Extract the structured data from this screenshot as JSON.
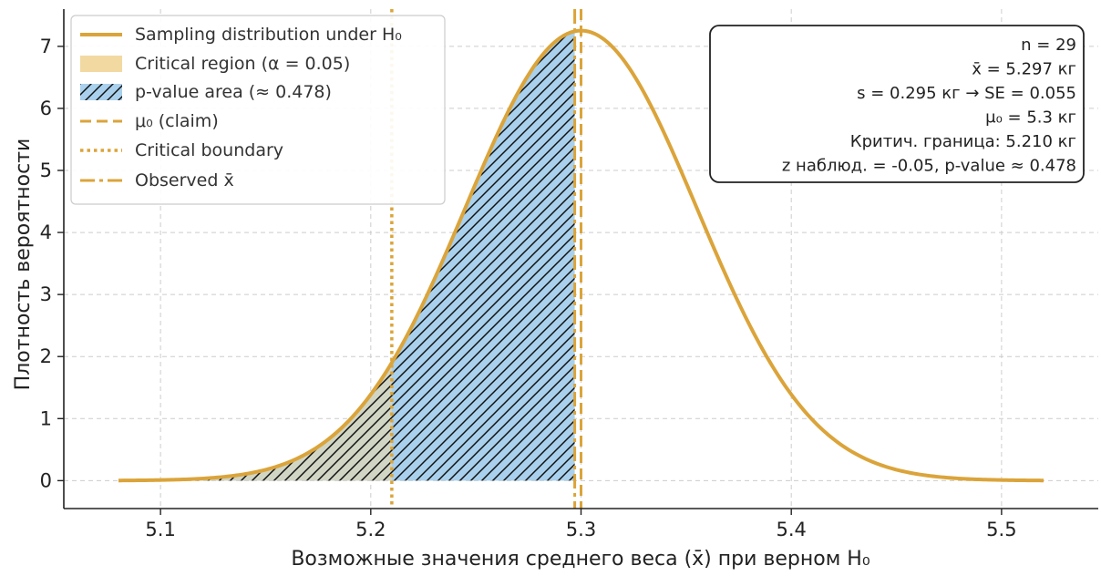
{
  "chart_data": {
    "type": "area",
    "title": "",
    "xlabel": "Возможные значения среднего веса (x̄) при верном H₀",
    "ylabel": "Плотность вероятности",
    "xlim": [
      5.054,
      5.546
    ],
    "ylim": [
      -0.45,
      7.6
    ],
    "x_ticks": [
      5.1,
      5.2,
      5.3,
      5.4,
      5.5
    ],
    "x_tick_labels": [
      "5.1",
      "5.2",
      "5.3",
      "5.4",
      "5.5"
    ],
    "y_ticks": [
      0,
      1,
      2,
      3,
      4,
      5,
      6,
      7
    ],
    "y_tick_labels": [
      "0",
      "1",
      "2",
      "3",
      "4",
      "5",
      "6",
      "7"
    ],
    "grid": true,
    "legend_position": "top-left",
    "distribution": {
      "kind": "normal",
      "mean": 5.3,
      "se": 0.055,
      "x_range": [
        5.08,
        5.52
      ]
    },
    "critical_boundary": 5.21,
    "mu0": 5.3,
    "observed_mean": 5.297,
    "series": [
      {
        "name": "Sampling distribution under H₀"
      },
      {
        "name": "Critical region (α = 0.05)",
        "range": [
          5.08,
          5.21
        ]
      },
      {
        "name": "p-value area (≈ 0.478)",
        "range": [
          5.08,
          5.297
        ]
      },
      {
        "name": "μ₀ (claim)",
        "x": 5.3
      },
      {
        "name": "Critical boundary",
        "x": 5.21
      },
      {
        "name": "Observed x̄",
        "x": 5.297
      }
    ],
    "annotation": [
      "n = 29",
      "x̄ = 5.297 кг",
      "s = 0.295 кг  →  SE = 0.055",
      "μ₀ = 5.3 кг",
      "Критич. граница: 5.210 кг",
      "z наблюд. = -0.05,  p-value ≈ 0.478"
    ],
    "colors": {
      "curve": "#DBA43A",
      "critical_fill": "#F2D9A2",
      "pvalue_fill": "#A9D0EC",
      "overlap_fill": "#9DC2C7",
      "hatch": "#111111",
      "grid": "#cccccc",
      "axis": "#222222",
      "box_edge": "#222222"
    }
  }
}
